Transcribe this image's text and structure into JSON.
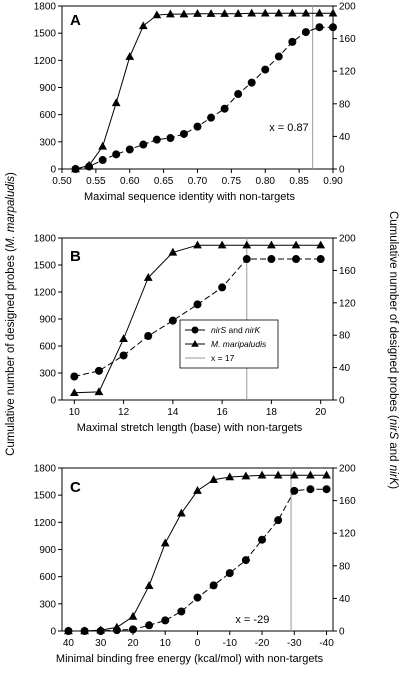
{
  "ylabel_left": {
    "prefix": "Cumulative number of designed probes (",
    "italic": "M. marpaludis",
    "suffix": ")"
  },
  "ylabel_right": {
    "prefix": "Cumulative number of designed probes (",
    "italic": "nirS",
    "middle": " and ",
    "italic2": "nirK",
    "suffix": ")"
  },
  "legend": {
    "items": [
      {
        "marker": "circle",
        "italic": "nirS",
        "rest": " and ",
        "italic2": "nirK"
      },
      {
        "marker": "triangle",
        "italic": "M. maripaludis",
        "rest": "",
        "italic2": ""
      },
      {
        "marker": "line",
        "italic": "",
        "rest": "x = 17",
        "italic2": ""
      }
    ]
  },
  "chart_data": [
    {
      "type": "line",
      "panel": "A",
      "xlabel": "Maximal sequence identity with non-targets",
      "xlim": [
        0.5,
        0.9
      ],
      "xticks": [
        0.5,
        0.55,
        0.6,
        0.65,
        0.7,
        0.75,
        0.8,
        0.85,
        0.9
      ],
      "xtick_labels": [
        "0.50",
        "0.55",
        "0.60",
        "0.65",
        "0.70",
        "0.75",
        "0.80",
        "0.85",
        "0.90"
      ],
      "ylim_left": [
        0,
        1800
      ],
      "yticks_left": [
        "0",
        "300",
        "600",
        "900",
        "1200",
        "1500",
        "1800"
      ],
      "ylim_right": [
        0,
        200
      ],
      "yticks_right": [
        "0",
        "40",
        "80",
        "120",
        "160",
        "200"
      ],
      "vline_x": 0.87,
      "annotation": "x = 0.87",
      "series": [
        {
          "marker": "triangle",
          "axis": "left",
          "x": [
            0.52,
            0.54,
            0.56,
            0.58,
            0.6,
            0.62,
            0.64,
            0.66,
            0.68,
            0.7,
            0.72,
            0.74,
            0.76,
            0.78,
            0.8,
            0.82,
            0.84,
            0.86,
            0.88,
            0.9
          ],
          "values": [
            0,
            40,
            250,
            730,
            1240,
            1580,
            1700,
            1710,
            1710,
            1715,
            1715,
            1715,
            1715,
            1720,
            1720,
            1720,
            1720,
            1720,
            1720,
            1720
          ]
        },
        {
          "marker": "circle",
          "axis": "right",
          "x": [
            0.52,
            0.54,
            0.56,
            0.58,
            0.6,
            0.62,
            0.64,
            0.66,
            0.68,
            0.7,
            0.72,
            0.74,
            0.76,
            0.78,
            0.8,
            0.82,
            0.84,
            0.86,
            0.88,
            0.9
          ],
          "values": [
            0,
            3,
            11,
            18,
            24,
            30,
            36,
            38,
            43,
            52,
            63,
            74,
            92,
            106,
            122,
            138,
            156,
            168,
            174,
            174
          ]
        }
      ]
    },
    {
      "type": "line",
      "panel": "B",
      "xlabel": "Maximal stretch length (base) with non-targets",
      "xlim": [
        9.5,
        20.5
      ],
      "xticks": [
        10,
        12,
        14,
        16,
        18,
        20
      ],
      "xtick_labels": [
        "10",
        "12",
        "14",
        "16",
        "18",
        "20"
      ],
      "ylim_left": [
        0,
        1800
      ],
      "yticks_left": [
        "0",
        "300",
        "600",
        "900",
        "1200",
        "1500",
        "1800"
      ],
      "ylim_right": [
        0,
        200
      ],
      "yticks_right": [
        "0",
        "40",
        "80",
        "120",
        "160",
        "200"
      ],
      "vline_x": 17,
      "series": [
        {
          "marker": "triangle",
          "axis": "left",
          "x": [
            10,
            11,
            12,
            13,
            14,
            15,
            16,
            17,
            18,
            19,
            20
          ],
          "values": [
            80,
            90,
            680,
            1360,
            1640,
            1720,
            1720,
            1720,
            1720,
            1720,
            1720
          ]
        },
        {
          "marker": "circle",
          "axis": "right",
          "x": [
            10,
            11,
            12,
            13,
            14,
            15,
            16,
            17,
            18,
            19,
            20
          ],
          "values": [
            29,
            36,
            55,
            79,
            98,
            118,
            139,
            174,
            174,
            174,
            174
          ]
        }
      ]
    },
    {
      "type": "line",
      "panel": "C",
      "xlabel": "Minimal binding free energy (kcal/mol) with non-targets",
      "xlim": [
        42,
        -42
      ],
      "xticks": [
        40,
        30,
        20,
        10,
        0,
        -10,
        -20,
        -30,
        -40
      ],
      "xtick_labels": [
        "40",
        "30",
        "20",
        "10",
        "0",
        "-10",
        "-20",
        "-30",
        "-40"
      ],
      "ylim_left": [
        0,
        1800
      ],
      "yticks_left": [
        "0",
        "300",
        "600",
        "900",
        "1200",
        "1500",
        "1800"
      ],
      "ylim_right": [
        0,
        200
      ],
      "yticks_right": [
        "0",
        "40",
        "80",
        "120",
        "160",
        "200"
      ],
      "vline_x": -29,
      "annotation": "x = -29",
      "series": [
        {
          "marker": "triangle",
          "axis": "left",
          "x": [
            40,
            35,
            30,
            25,
            20,
            15,
            10,
            5,
            0,
            -5,
            -10,
            -15,
            -20,
            -25,
            -30,
            -35,
            -40
          ],
          "values": [
            0,
            0,
            10,
            40,
            160,
            500,
            970,
            1300,
            1550,
            1670,
            1700,
            1710,
            1720,
            1720,
            1720,
            1720,
            1720
          ]
        },
        {
          "marker": "circle",
          "axis": "right",
          "x": [
            40,
            35,
            30,
            25,
            20,
            15,
            10,
            5,
            0,
            -5,
            -10,
            -15,
            -20,
            -25,
            -30,
            -35,
            -40
          ],
          "values": [
            0,
            0,
            0,
            1,
            2,
            7,
            13,
            24,
            41,
            56,
            71,
            87,
            112,
            136,
            172,
            174,
            174
          ]
        }
      ]
    }
  ]
}
